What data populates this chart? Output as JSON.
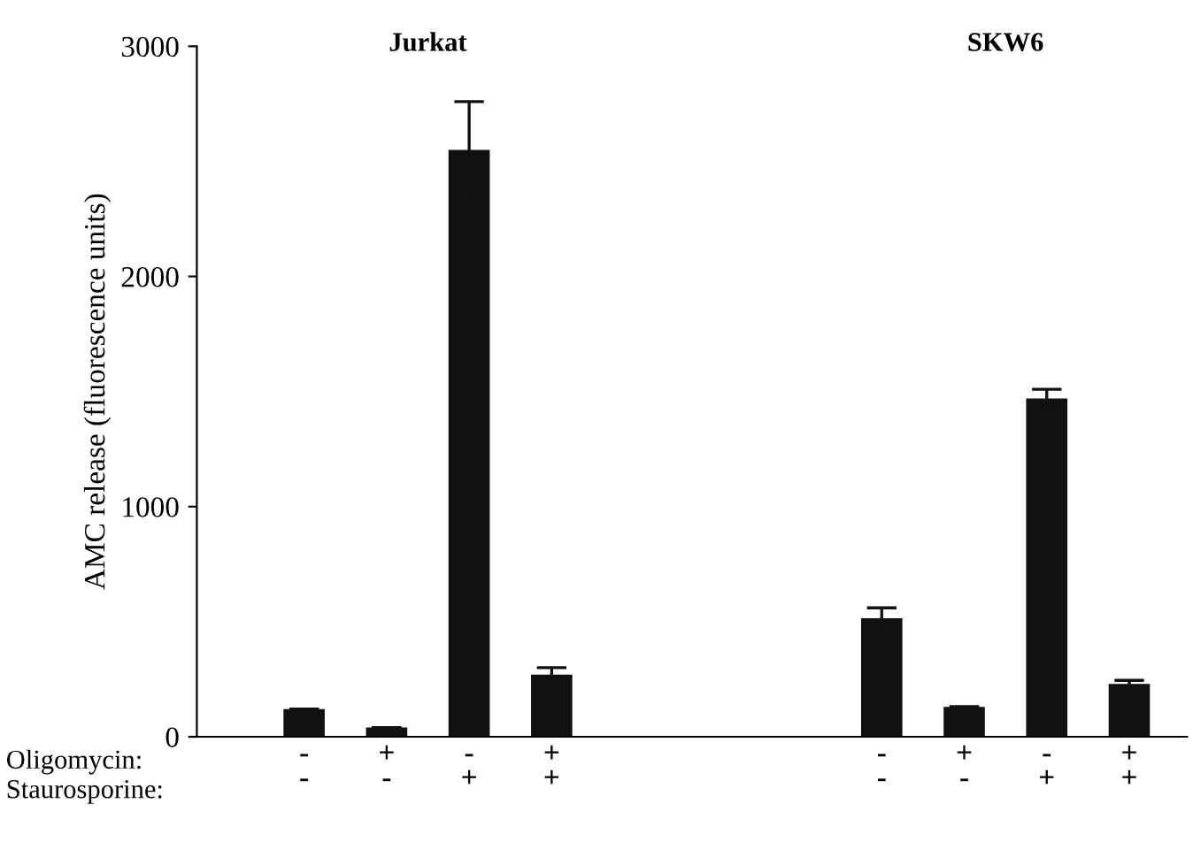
{
  "chart_data": {
    "type": "bar",
    "ylabel": "AMC release (fluorescence units)",
    "categories": [
      "-\n-",
      "+\n-",
      "-\n+",
      "+\n+",
      null,
      null,
      null,
      "-\n-",
      "+\n-",
      "-\n+",
      "+\n+"
    ],
    "values": [
      120,
      40,
      2550,
      270,
      null,
      null,
      null,
      515,
      130,
      1470,
      230
    ],
    "errors": [
      null,
      null,
      210,
      30,
      null,
      null,
      null,
      45,
      null,
      40,
      15
    ],
    "color": "#111111",
    "ylim": [
      0,
      3000
    ],
    "yticks": [
      0,
      1000,
      2000,
      3000
    ],
    "annotations": [
      "Jurkat",
      "SKW6",
      "Oligomycin:",
      "Staurosporine:"
    ],
    "grid": false,
    "legend": false
  }
}
